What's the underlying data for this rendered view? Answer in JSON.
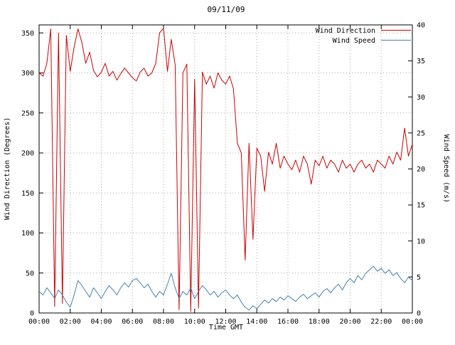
{
  "title": "09/11/09",
  "axes": {
    "x": {
      "label": "Time GMT",
      "tick_hours": [
        0,
        2,
        4,
        6,
        8,
        10,
        12,
        14,
        16,
        18,
        20,
        22,
        24
      ],
      "tick_labels": [
        "00:00",
        "02:00",
        "04:00",
        "06:00",
        "08:00",
        "10:00",
        "12:00",
        "14:00",
        "16:00",
        "18:00",
        "20:00",
        "22:00",
        "00:00"
      ]
    },
    "y_left": {
      "label": "Wind Direction (Degrees)",
      "min": 0,
      "max": 360,
      "ticks": [
        0,
        50,
        100,
        150,
        200,
        250,
        300,
        350
      ]
    },
    "y_right": {
      "label": "Wind Speed (m/s)",
      "min": 0,
      "max": 40,
      "ticks": [
        0,
        5,
        10,
        15,
        20,
        25,
        30,
        35,
        40
      ]
    }
  },
  "legend": [
    {
      "label": "Wind Direction",
      "color": "#cc0000"
    },
    {
      "label": "Wind Speed",
      "color": "#4682b4"
    }
  ],
  "colors": {
    "wind_direction": "#cc0000",
    "wind_speed": "#4682b4",
    "grid": "#a8a8a8",
    "border": "#000000"
  },
  "chart_data": {
    "type": "line",
    "title": "09/11/09",
    "xlabel": "Time GMT",
    "ylabel_left": "Wind Direction (Degrees)",
    "ylabel_right": "Wind Speed (m/s)",
    "x_hours_start": 0,
    "x_hours_step": 0.25,
    "points": 97,
    "x_range_hours": [
      0,
      24
    ],
    "y_left_range": [
      0,
      360
    ],
    "y_right_range": [
      0,
      40
    ],
    "grid": true,
    "legend_position": "top-right",
    "series": [
      {
        "name": "Wind Direction",
        "axis": "left",
        "units": "degrees",
        "color": "#cc0000",
        "values": [
          300,
          296,
          312,
          355,
          8,
          350,
          12,
          347,
          302,
          332,
          355,
          338,
          312,
          326,
          303,
          295,
          301,
          312,
          296,
          302,
          291,
          299,
          306,
          300,
          294,
          290,
          301,
          306,
          296,
          300,
          312,
          350,
          356,
          302,
          342,
          310,
          4,
          300,
          311,
          2,
          292,
          6,
          301,
          286,
          296,
          281,
          300,
          291,
          286,
          296,
          280,
          212,
          200,
          66,
          212,
          92,
          206,
          196,
          152,
          201,
          186,
          212,
          181,
          196,
          186,
          179,
          191,
          176,
          196,
          186,
          161,
          191,
          184,
          196,
          181,
          191,
          186,
          176,
          191,
          181,
          186,
          176,
          186,
          191,
          181,
          186,
          176,
          191,
          186,
          181,
          196,
          186,
          201,
          191,
          231,
          196,
          211
        ]
      },
      {
        "name": "Wind Speed",
        "axis": "right",
        "units": "m/s",
        "color": "#4682b4",
        "values": [
          3.0,
          2.5,
          3.5,
          2.8,
          2.0,
          3.2,
          2.5,
          1.5,
          0.8,
          2.5,
          4.5,
          3.8,
          3.0,
          2.2,
          3.5,
          2.8,
          2.0,
          3.0,
          3.8,
          3.2,
          2.5,
          3.5,
          4.2,
          3.6,
          4.5,
          4.8,
          4.2,
          3.5,
          4.0,
          3.0,
          2.2,
          3.0,
          2.5,
          4.0,
          5.5,
          3.5,
          2.0,
          3.0,
          2.5,
          3.5,
          2.0,
          3.0,
          3.8,
          3.2,
          2.5,
          3.0,
          2.2,
          2.8,
          3.2,
          2.5,
          2.0,
          2.5,
          1.5,
          0.8,
          0.4,
          1.0,
          0.6,
          1.2,
          1.8,
          1.4,
          2.0,
          1.6,
          2.2,
          1.8,
          2.4,
          2.0,
          1.6,
          2.2,
          2.6,
          2.0,
          2.4,
          2.8,
          2.2,
          3.0,
          3.4,
          2.8,
          3.5,
          4.0,
          3.2,
          4.2,
          4.8,
          4.2,
          5.2,
          4.6,
          5.5,
          6.0,
          6.5,
          5.8,
          6.2,
          5.5,
          6.0,
          5.2,
          5.6,
          4.8,
          4.2,
          5.0,
          4.5
        ]
      }
    ]
  }
}
